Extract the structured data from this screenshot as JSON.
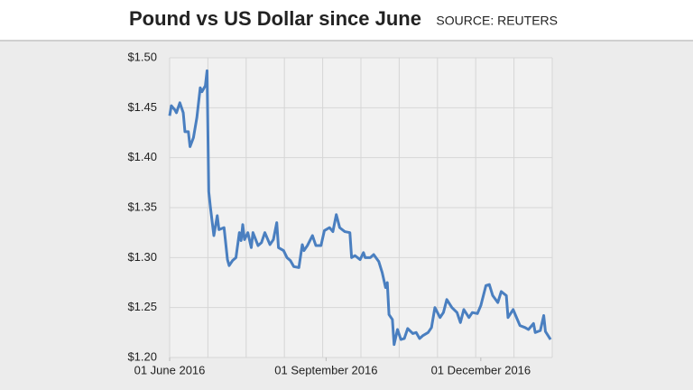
{
  "chart_data": {
    "type": "line",
    "title": "Pound vs US Dollar since June",
    "source": "SOURCE: REUTERS",
    "x": [
      "2016-06-01",
      "2016-06-02",
      "2016-06-04",
      "2016-06-05",
      "2016-06-07",
      "2016-06-09",
      "2016-06-10",
      "2016-06-12",
      "2016-06-13",
      "2016-06-15",
      "2016-06-17",
      "2016-06-19",
      "2016-06-20",
      "2016-06-22",
      "2016-06-23",
      "2016-06-24",
      "2016-06-25",
      "2016-06-27",
      "2016-06-29",
      "2016-06-30",
      "2016-07-03",
      "2016-07-05",
      "2016-07-06",
      "2016-07-08",
      "2016-07-10",
      "2016-07-12",
      "2016-07-13",
      "2016-07-14",
      "2016-07-15",
      "2016-07-17",
      "2016-07-19",
      "2016-07-20",
      "2016-07-23",
      "2016-07-25",
      "2016-07-27",
      "2016-07-30",
      "2016-08-01",
      "2016-08-03",
      "2016-08-04",
      "2016-08-07",
      "2016-08-09",
      "2016-08-11",
      "2016-08-13",
      "2016-08-16",
      "2016-08-18",
      "2016-08-19",
      "2016-08-21",
      "2016-08-24",
      "2016-08-26",
      "2016-08-29",
      "2016-08-31",
      "2016-09-03",
      "2016-09-05",
      "2016-09-07",
      "2016-09-09",
      "2016-09-12",
      "2016-09-15",
      "2016-09-16",
      "2016-09-18",
      "2016-09-21",
      "2016-09-23",
      "2016-09-24",
      "2016-09-27",
      "2016-09-29",
      "2016-10-02",
      "2016-10-04",
      "2016-10-06",
      "2016-10-07",
      "2016-10-08",
      "2016-10-10",
      "2016-10-11",
      "2016-10-13",
      "2016-10-15",
      "2016-10-17",
      "2016-10-19",
      "2016-10-22",
      "2016-10-24",
      "2016-10-26",
      "2016-10-28",
      "2016-10-31",
      "2016-11-02",
      "2016-11-04",
      "2016-11-07",
      "2016-11-09",
      "2016-11-11",
      "2016-11-14",
      "2016-11-17",
      "2016-11-19",
      "2016-11-21",
      "2016-11-24",
      "2016-11-26",
      "2016-11-29",
      "2016-12-01",
      "2016-12-04",
      "2016-12-06",
      "2016-12-08",
      "2016-12-11",
      "2016-12-13",
      "2016-12-16",
      "2016-12-17",
      "2016-12-20",
      "2016-12-22",
      "2016-12-24",
      "2016-12-27",
      "2016-12-29",
      "2017-01-01",
      "2017-01-02",
      "2017-01-05",
      "2017-01-07",
      "2017-01-08",
      "2017-01-11"
    ],
    "series": [
      {
        "name": "GBP/USD",
        "color": "#4a7fc0",
        "values": [
          1.442,
          1.452,
          1.448,
          1.445,
          1.455,
          1.445,
          1.426,
          1.426,
          1.411,
          1.42,
          1.44,
          1.47,
          1.466,
          1.472,
          1.487,
          1.366,
          1.35,
          1.322,
          1.342,
          1.328,
          1.33,
          1.298,
          1.292,
          1.297,
          1.3,
          1.325,
          1.317,
          1.333,
          1.318,
          1.325,
          1.31,
          1.325,
          1.312,
          1.315,
          1.325,
          1.313,
          1.318,
          1.335,
          1.31,
          1.307,
          1.3,
          1.297,
          1.291,
          1.29,
          1.313,
          1.307,
          1.312,
          1.322,
          1.312,
          1.312,
          1.327,
          1.33,
          1.326,
          1.343,
          1.33,
          1.326,
          1.325,
          1.3,
          1.302,
          1.298,
          1.305,
          1.3,
          1.3,
          1.303,
          1.296,
          1.285,
          1.27,
          1.275,
          1.243,
          1.238,
          1.213,
          1.228,
          1.218,
          1.219,
          1.229,
          1.224,
          1.225,
          1.219,
          1.222,
          1.225,
          1.23,
          1.25,
          1.24,
          1.245,
          1.258,
          1.25,
          1.245,
          1.235,
          1.248,
          1.24,
          1.245,
          1.244,
          1.252,
          1.272,
          1.273,
          1.262,
          1.255,
          1.266,
          1.262,
          1.24,
          1.248,
          1.24,
          1.232,
          1.23,
          1.228,
          1.234,
          1.225,
          1.227,
          1.242,
          1.226,
          1.218
        ]
      }
    ],
    "xlim": [
      "2016-06-01",
      "2017-01-12"
    ],
    "xticks": [
      {
        "value": "2016-06-01",
        "label": "01 June 2016"
      },
      {
        "value": "2016-09-01",
        "label": "01 September 2016"
      },
      {
        "value": "2016-12-01",
        "label": "01 December 2016"
      }
    ],
    "ylim": [
      1.2,
      1.5
    ],
    "yticks": [
      {
        "value": 1.2,
        "label": "$1.20"
      },
      {
        "value": 1.25,
        "label": "$1.25"
      },
      {
        "value": 1.3,
        "label": "$1.30"
      },
      {
        "value": 1.35,
        "label": "$1.35"
      },
      {
        "value": 1.4,
        "label": "$1.40"
      },
      {
        "value": 1.45,
        "label": "$1.45"
      },
      {
        "value": 1.5,
        "label": "$1.50"
      }
    ],
    "grid": true
  }
}
